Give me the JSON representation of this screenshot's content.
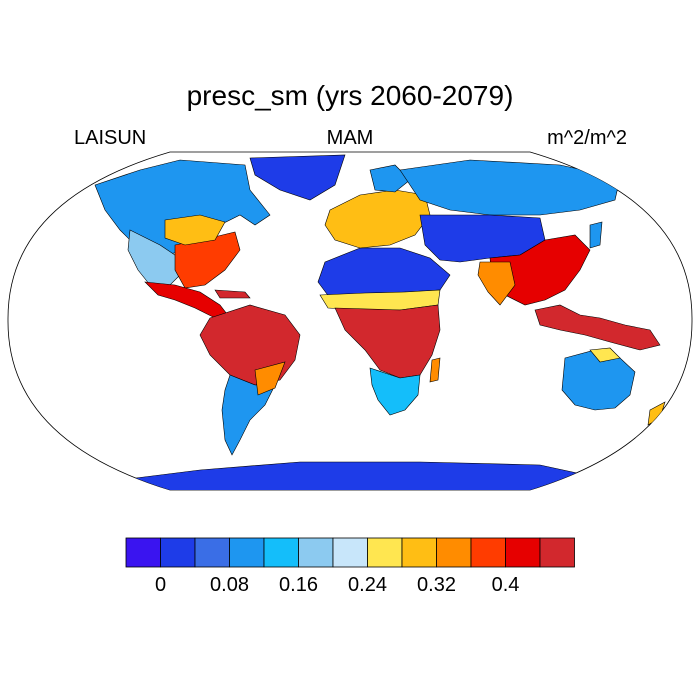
{
  "title": "presc_sm (yrs 2060-2079)",
  "left_label": "LAISUN",
  "center_label": "MAM",
  "right_label": "m^2/m^2",
  "colorbar": {
    "colors": [
      "#3a14f0",
      "#1e3ce8",
      "#3a6ee6",
      "#1e96f0",
      "#14befa",
      "#8ccaf0",
      "#c8e6fa",
      "#ffe650",
      "#ffbe14",
      "#ff8c00",
      "#ff3c00",
      "#e60000",
      "#d2282d"
    ],
    "tick_labels": [
      "0",
      "0.08",
      "0.16",
      "0.24",
      "0.32",
      "0.4"
    ]
  },
  "map": {
    "projection": "Robinson",
    "ocean_color": "#ffffff",
    "coastline_color": "#000000",
    "regions": [
      {
        "name": "Greenland / Canadian Arctic",
        "level": 1
      },
      {
        "name": "Boreal North America",
        "level": 3
      },
      {
        "name": "Western United States",
        "level": 5
      },
      {
        "name": "Eastern United States",
        "level": 10
      },
      {
        "name": "Mexico and Central America",
        "level": 11
      },
      {
        "name": "Amazon basin",
        "level": 12
      },
      {
        "name": "Southern South America",
        "level": 4
      },
      {
        "name": "Sahara and Arabia",
        "level": 1
      },
      {
        "name": "Sahel",
        "level": 8
      },
      {
        "name": "Central Africa",
        "level": 12
      },
      {
        "name": "Southern Africa",
        "level": 5
      },
      {
        "name": "Europe",
        "level": 9
      },
      {
        "name": "Siberia",
        "level": 3
      },
      {
        "name": "Central Asia",
        "level": 1
      },
      {
        "name": "South and East Asia",
        "level": 11
      },
      {
        "name": "Maritime Southeast Asia",
        "level": 12
      },
      {
        "name": "Australia interior",
        "level": 3
      },
      {
        "name": "Antarctica",
        "level": 1
      }
    ]
  }
}
